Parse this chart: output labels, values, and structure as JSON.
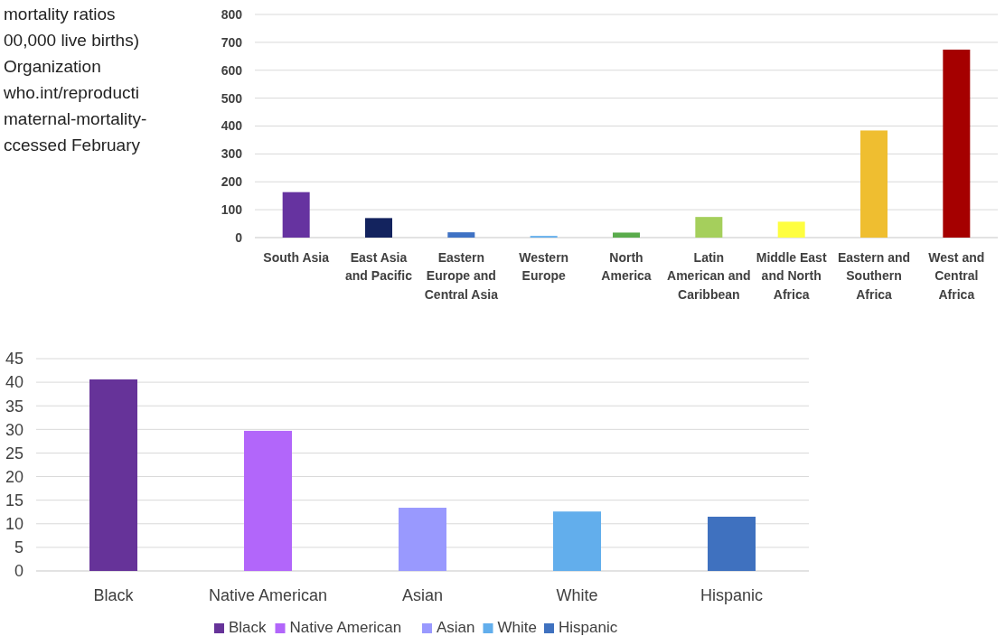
{
  "chart_data": [
    {
      "type": "bar",
      "annotations": [
        "mortality ratios",
        "00,000 live births)",
        "Organization",
        "who.int/reproducti",
        "maternal-mortality-",
        "ccessed February"
      ],
      "categories": [
        "South Asia",
        "East Asia and Pacific",
        "Eastern Europe and Central Asia",
        "Western Europe",
        "North America",
        "Latin American and Caribbean",
        "Middle East and North Africa",
        "Eastern and Southern Africa",
        "West and Central Africa"
      ],
      "values": [
        163,
        70,
        19,
        6,
        18,
        74,
        57,
        384,
        674
      ],
      "colors": [
        "#6633a0",
        "#13235e",
        "#3f72c4",
        "#62aeec",
        "#5aab4c",
        "#a5cf5c",
        "#fefe40",
        "#efbe30",
        "#a50000"
      ],
      "ylim": [
        0,
        800
      ],
      "yticks": [
        0,
        100,
        200,
        300,
        400,
        500,
        600,
        700,
        800
      ],
      "grid": "y",
      "legend": false
    },
    {
      "type": "bar",
      "categories": [
        "Black",
        "Native American",
        "Asian",
        "White",
        "Hispanic"
      ],
      "series": [
        {
          "name": "Black",
          "color": "#663399",
          "values": [
            40.6,
            null,
            null,
            null,
            null
          ]
        },
        {
          "name": "Native American",
          "color": "#b266fa",
          "values": [
            null,
            29.7,
            null,
            null,
            null
          ]
        },
        {
          "name": "Asian",
          "color": "#9999fe",
          "values": [
            null,
            null,
            13.4,
            null,
            null
          ]
        },
        {
          "name": "White",
          "color": "#62aeec",
          "values": [
            null,
            null,
            null,
            12.6,
            null
          ]
        },
        {
          "name": "Hispanic",
          "color": "#3f71bf",
          "values": [
            null,
            null,
            null,
            null,
            11.5
          ]
        }
      ],
      "ylim": [
        0,
        45
      ],
      "yticks": [
        0,
        5,
        10,
        15,
        20,
        25,
        30,
        35,
        40,
        45
      ],
      "grid": "y",
      "legend": "bottom"
    }
  ]
}
